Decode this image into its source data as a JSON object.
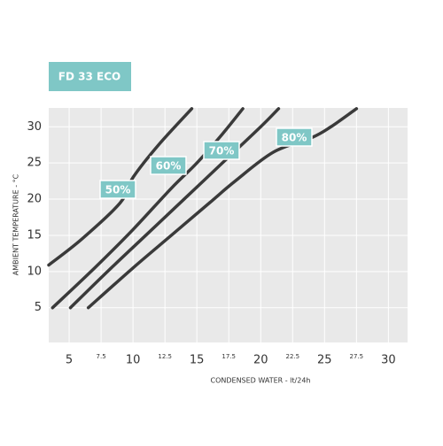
{
  "chart_data": {
    "type": "line",
    "title": "FD 33 ECO",
    "x_label": "CONDENSED WATER - lt/24h",
    "y_label": "AMBIENT TEMPERATURE - °C",
    "xlim": [
      3.4,
      31.5
    ],
    "ylim": [
      0.2,
      32.6
    ],
    "xticks": [
      5,
      7.5,
      10,
      12.5,
      15,
      17.5,
      20,
      22.5,
      25,
      27.5,
      30
    ],
    "yticks": [
      5,
      10,
      15,
      20,
      25,
      30
    ],
    "grid": true,
    "series": [
      {
        "name": "50%",
        "color": "#3a3a3a",
        "x": [
          3.4,
          6,
          9,
          10,
          12,
          14.6
        ],
        "values": [
          10.9,
          14.5,
          19.5,
          23,
          27.5,
          32.5
        ]
      },
      {
        "name": "60%",
        "color": "#3a3a3a",
        "x": [
          3.7,
          7,
          10,
          13,
          15,
          17,
          18.6
        ],
        "values": [
          5,
          10.5,
          15.8,
          21.5,
          25,
          29,
          32.5
        ]
      },
      {
        "name": "70%",
        "color": "#3a3a3a",
        "x": [
          5.1,
          8,
          11,
          14,
          17,
          20,
          21.4
        ],
        "values": [
          5,
          10,
          15,
          20,
          25,
          30,
          32.5
        ]
      },
      {
        "name": "80%",
        "color": "#3a3a3a",
        "x": [
          6.5,
          10,
          13,
          16,
          18,
          21,
          24,
          25.5,
          27.5
        ],
        "values": [
          5,
          10.5,
          15,
          19.5,
          22.5,
          26.5,
          28.5,
          30,
          32.5
        ]
      }
    ]
  }
}
